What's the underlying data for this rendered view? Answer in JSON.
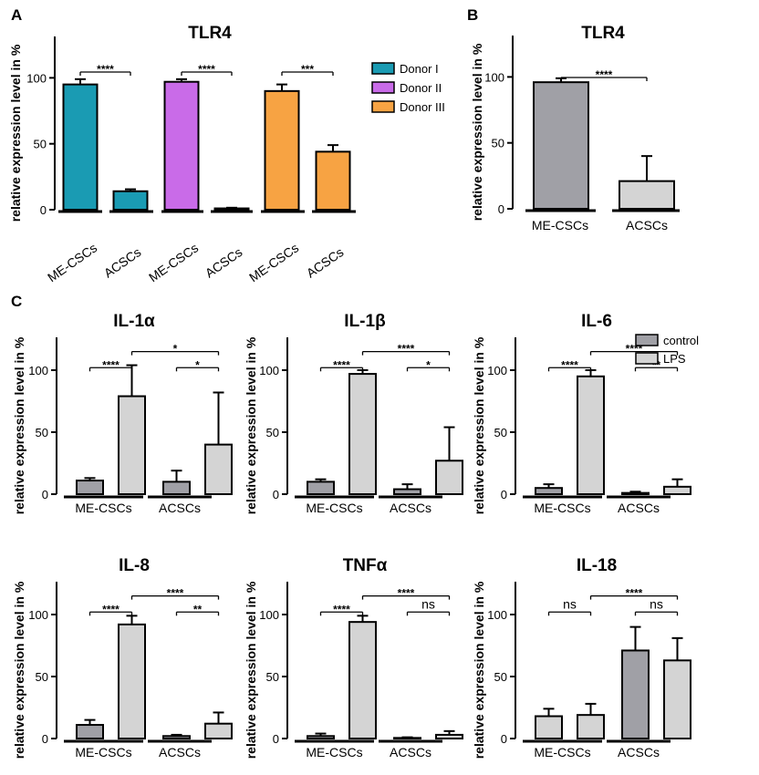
{
  "colors": {
    "donor1": "#1a9bb3",
    "donor2": "#c96be8",
    "donor3": "#f7a343",
    "dark_gray": "#a0a0a6",
    "light_gray": "#d4d4d4"
  },
  "chart_data": [
    {
      "panel": "A",
      "type": "bar",
      "title": "TLR4",
      "ylabel": "relative expression level in %",
      "ylim": [
        0,
        130
      ],
      "yticks": [
        0,
        50,
        100
      ],
      "categories": [
        "ME-CSCs",
        "ACSCs",
        "ME-CSCs",
        "ACSCs",
        "ME-CSCs",
        "ACSCs"
      ],
      "values": [
        95,
        14,
        97,
        1,
        90,
        44
      ],
      "errors": [
        4,
        1.5,
        2,
        0.5,
        5,
        5
      ],
      "bar_colors": [
        "#1a9bb3",
        "#1a9bb3",
        "#c96be8",
        "#c96be8",
        "#f7a343",
        "#f7a343"
      ],
      "legend": [
        {
          "label": "Donor I",
          "color": "#1a9bb3"
        },
        {
          "label": "Donor II",
          "color": "#c96be8"
        },
        {
          "label": "Donor III",
          "color": "#f7a343"
        }
      ],
      "significance": [
        {
          "from": 0,
          "to": 1,
          "label": "****"
        },
        {
          "from": 2,
          "to": 3,
          "label": "****"
        },
        {
          "from": 4,
          "to": 5,
          "label": "***"
        }
      ]
    },
    {
      "panel": "B",
      "type": "bar",
      "title": "TLR4",
      "ylabel": "relative expression level in %",
      "ylim": [
        0,
        130
      ],
      "yticks": [
        0,
        50,
        100
      ],
      "categories": [
        "ME-CSCs",
        "ACSCs"
      ],
      "values": [
        96,
        21
      ],
      "errors": [
        3,
        19
      ],
      "bar_colors": [
        "#a0a0a6",
        "#d4d4d4"
      ],
      "significance": [
        {
          "from": 0,
          "to": 1,
          "label": "****"
        }
      ]
    },
    {
      "panel": "C",
      "type": "bar",
      "title": "IL-1α",
      "ylabel": "relative expression level in %",
      "ylim": [
        0,
        125
      ],
      "yticks": [
        0,
        50,
        100
      ],
      "groups": [
        "ME-CSCs",
        "ACSCs"
      ],
      "series": [
        {
          "name": "control",
          "values": [
            11,
            10
          ],
          "errors": [
            2,
            9
          ]
        },
        {
          "name": "LPS",
          "values": [
            79,
            40
          ],
          "errors": [
            25,
            42
          ]
        }
      ],
      "significance": [
        {
          "from": 0,
          "to": 1,
          "label": "****",
          "level": 1
        },
        {
          "from": 2,
          "to": 3,
          "label": "*",
          "level": 1
        },
        {
          "from": 1,
          "to": 3,
          "label": "*",
          "level": 2
        }
      ]
    },
    {
      "panel": "",
      "type": "bar",
      "title": "IL-1β",
      "ylabel": "relative expression level in %",
      "ylim": [
        0,
        125
      ],
      "yticks": [
        0,
        50,
        100
      ],
      "groups": [
        "ME-CSCs",
        "ACSCs"
      ],
      "series": [
        {
          "name": "control",
          "values": [
            10,
            4
          ],
          "errors": [
            2,
            4
          ]
        },
        {
          "name": "LPS",
          "values": [
            97,
            27
          ],
          "errors": [
            3,
            27
          ]
        }
      ],
      "significance": [
        {
          "from": 0,
          "to": 1,
          "label": "****",
          "level": 1
        },
        {
          "from": 2,
          "to": 3,
          "label": "*",
          "level": 1
        },
        {
          "from": 1,
          "to": 3,
          "label": "****",
          "level": 2
        }
      ]
    },
    {
      "panel": "",
      "type": "bar",
      "title": "IL-6",
      "ylabel": "relative expression level in %",
      "ylim": [
        0,
        125
      ],
      "yticks": [
        0,
        50,
        100
      ],
      "groups": [
        "ME-CSCs",
        "ACSCs"
      ],
      "series": [
        {
          "name": "control",
          "values": [
            5,
            1
          ],
          "errors": [
            3,
            1
          ]
        },
        {
          "name": "LPS",
          "values": [
            95,
            6
          ],
          "errors": [
            5,
            6
          ]
        }
      ],
      "significance": [
        {
          "from": 0,
          "to": 1,
          "label": "****",
          "level": 1
        },
        {
          "from": 2,
          "to": 3,
          "label": "**",
          "level": 1
        },
        {
          "from": 1,
          "to": 3,
          "label": "****",
          "level": 2
        }
      ],
      "legend": [
        {
          "label": "control",
          "color": "#a0a0a6"
        },
        {
          "label": "LPS",
          "color": "#d4d4d4"
        }
      ]
    },
    {
      "panel": "",
      "type": "bar",
      "title": "IL-8",
      "ylabel": "relative expression level in %",
      "ylim": [
        0,
        125
      ],
      "yticks": [
        0,
        50,
        100
      ],
      "groups": [
        "ME-CSCs",
        "ACSCs"
      ],
      "series": [
        {
          "name": "control",
          "values": [
            11,
            2
          ],
          "errors": [
            4,
            1
          ]
        },
        {
          "name": "LPS",
          "values": [
            92,
            12
          ],
          "errors": [
            7,
            9
          ]
        }
      ],
      "significance": [
        {
          "from": 0,
          "to": 1,
          "label": "****",
          "level": 1
        },
        {
          "from": 2,
          "to": 3,
          "label": "**",
          "level": 1
        },
        {
          "from": 1,
          "to": 3,
          "label": "****",
          "level": 2
        }
      ]
    },
    {
      "panel": "",
      "type": "bar",
      "title": "TNFα",
      "ylabel": "relative expression level in %",
      "ylim": [
        0,
        125
      ],
      "yticks": [
        0,
        50,
        100
      ],
      "groups": [
        "ME-CSCs",
        "ACSCs"
      ],
      "series": [
        {
          "name": "control",
          "values": [
            2,
            0.5
          ],
          "errors": [
            2,
            0.5
          ]
        },
        {
          "name": "LPS",
          "values": [
            94,
            3
          ],
          "errors": [
            5,
            3
          ]
        }
      ],
      "significance": [
        {
          "from": 0,
          "to": 1,
          "label": "****",
          "level": 1
        },
        {
          "from": 2,
          "to": 3,
          "label": "ns",
          "level": 1
        },
        {
          "from": 1,
          "to": 3,
          "label": "****",
          "level": 2
        }
      ]
    },
    {
      "panel": "",
      "type": "bar",
      "title": "IL-18",
      "ylabel": "relative expression level in %",
      "ylim": [
        0,
        125
      ],
      "yticks": [
        0,
        50,
        100
      ],
      "groups": [
        "ME-CSCs",
        "ACSCs"
      ],
      "series": [
        {
          "name": "control",
          "values": [
            18,
            71
          ],
          "errors": [
            6,
            19
          ]
        },
        {
          "name": "LPS",
          "values": [
            19,
            63
          ],
          "errors": [
            9,
            18
          ]
        }
      ],
      "group_colors": [
        [
          "#d4d4d4",
          "#d4d4d4"
        ],
        [
          "#a0a0a6",
          "#d4d4d4"
        ]
      ],
      "significance": [
        {
          "from": 0,
          "to": 1,
          "label": "ns",
          "level": 1
        },
        {
          "from": 2,
          "to": 3,
          "label": "ns",
          "level": 1
        },
        {
          "from": 1,
          "to": 3,
          "label": "****",
          "level": 2
        }
      ]
    }
  ]
}
